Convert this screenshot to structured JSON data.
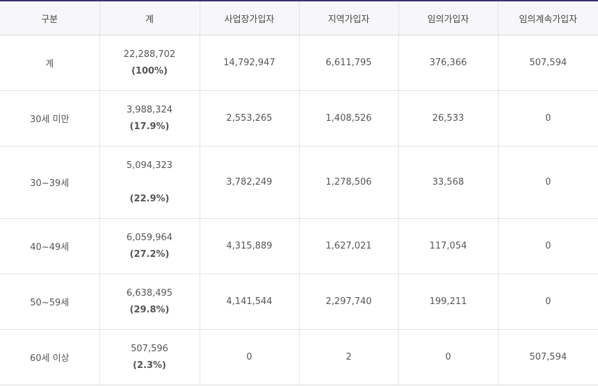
{
  "headers": [
    "구분",
    "계",
    "사업장가입자",
    "지역가입자",
    "임의가입자",
    "임의계속가입자"
  ],
  "rows": [
    {
      "category": "계",
      "total": "22,288,702",
      "percent": "(100%)",
      "workplace": "14,792,947",
      "regional": "6,611,795",
      "voluntary": "376,366",
      "voluntary_continued": "507,594"
    },
    {
      "category": "30세 미만",
      "total": "3,988,324",
      "percent": "(17.9%)",
      "workplace": "2,553,265",
      "regional": "1,408,526",
      "voluntary": "26,533",
      "voluntary_continued": "0"
    },
    {
      "category": "30~39세",
      "total": "5,094,323",
      "percent": "(22.9%)",
      "workplace": "3,782,249",
      "regional": "1,278,506",
      "voluntary": "33,568",
      "voluntary_continued": "0"
    },
    {
      "category": "40~49세",
      "total": "6,059,964",
      "percent": "(27.2%)",
      "workplace": "4,315,889",
      "regional": "1,627,021",
      "voluntary": "117,054",
      "voluntary_continued": "0"
    },
    {
      "category": "50~59세",
      "total": "6,638,495",
      "percent": "(29.8%)",
      "workplace": "4,141,544",
      "regional": "2,297,740",
      "voluntary": "199,211",
      "voluntary_continued": "0"
    },
    {
      "category": "60세 이상",
      "total": "507,596",
      "percent": "(2.3%)",
      "workplace": "0",
      "regional": "2",
      "voluntary": "0",
      "voluntary_continued": "507,594"
    }
  ]
}
